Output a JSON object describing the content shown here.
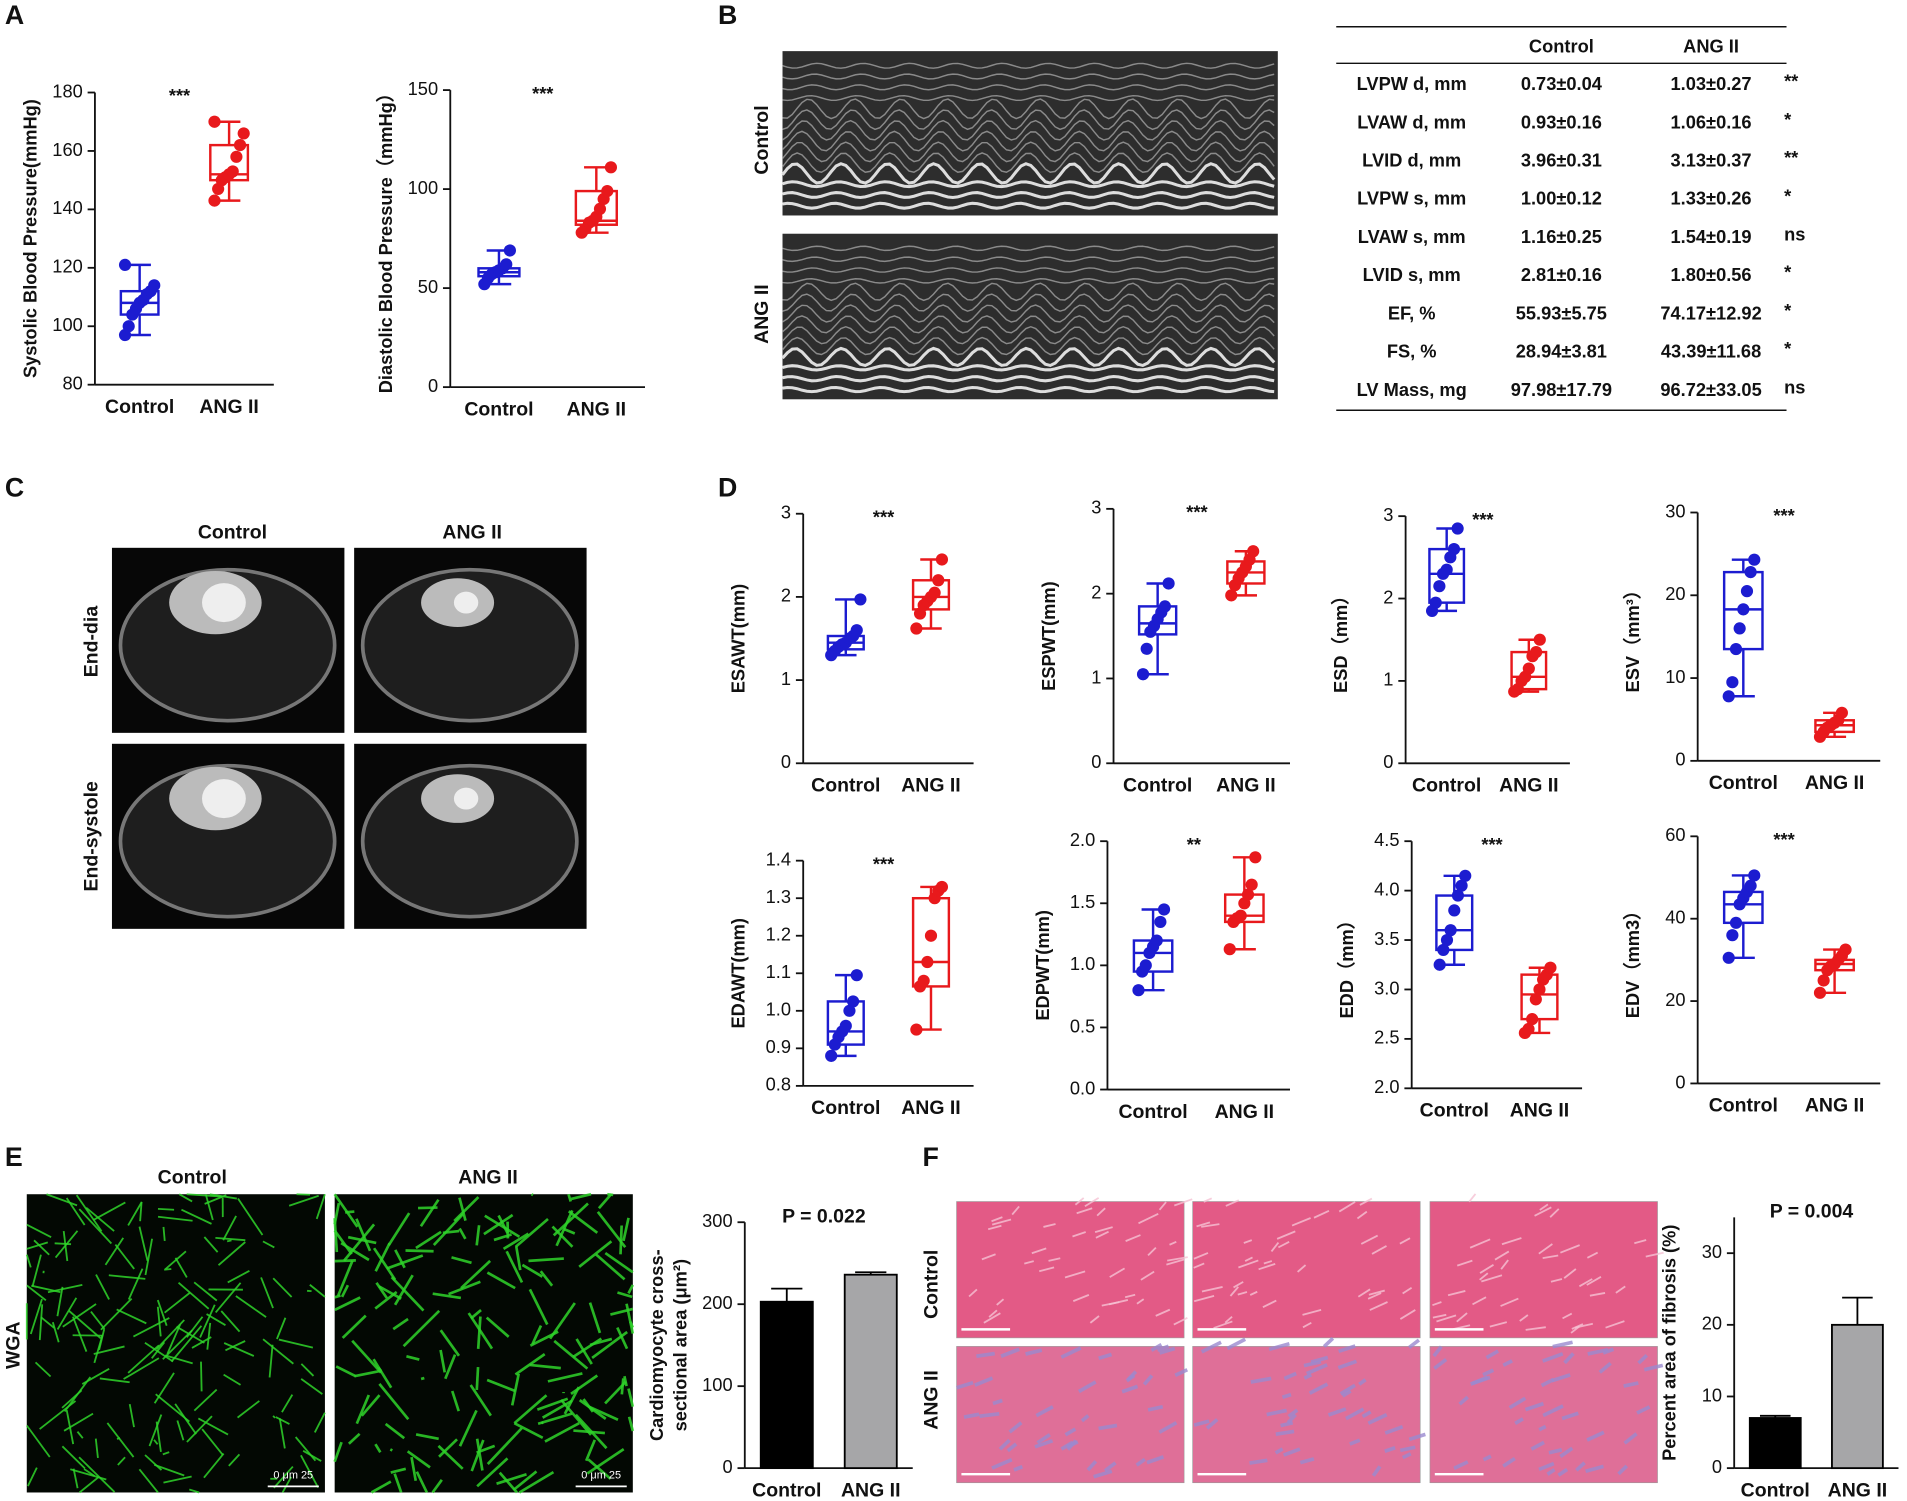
{
  "panel_labels": [
    "A",
    "B",
    "C",
    "D",
    "E",
    "F"
  ],
  "echo_labels": [
    "Control",
    "ANG II"
  ],
  "table": {
    "header": [
      "Control",
      "ANG II"
    ],
    "rows": [
      [
        "LVPW d, mm",
        "0.73±0.04",
        "1.03±0.27",
        "**"
      ],
      [
        "LVAW d, mm",
        "0.93±0.16",
        "1.06±0.16",
        "*"
      ],
      [
        "LVID d, mm",
        "3.96±0.31",
        "3.13±0.37",
        "**"
      ],
      [
        "LVPW s, mm",
        "1.00±0.12",
        "1.33±0.26",
        "*"
      ],
      [
        "LVAW s, mm",
        "1.16±0.25",
        "1.54±0.19",
        "ns"
      ],
      [
        "LVID s, mm",
        "2.81±0.16",
        "1.80±0.56",
        "*"
      ],
      [
        "EF, %",
        "55.93±5.75",
        "74.17±12.92",
        "*"
      ],
      [
        "FS, %",
        "28.94±3.81",
        "43.39±11.68",
        "*"
      ],
      [
        "LV Mass, mg",
        "97.98±17.79",
        "96.72±33.05",
        "ns"
      ]
    ]
  },
  "mri": {
    "columns": [
      "Control",
      "ANG II"
    ],
    "rows": [
      "End-dia",
      "End-systole"
    ]
  },
  "wga": {
    "columns": [
      "Control",
      "ANG II"
    ],
    "row": "WGA",
    "scale": "0   μm   25"
  },
  "fibrosis_images": {
    "rows": [
      "Control",
      "ANG II"
    ]
  },
  "chart_data": [
    {
      "type": "box",
      "ylabel": "Systolic Blood Pressure(mmHg)",
      "annotation": "***",
      "categories": [
        "Control",
        "ANG II"
      ],
      "ylim": [
        80,
        180
      ],
      "yticks": [
        80,
        100,
        120,
        140,
        160,
        180
      ],
      "groups": [
        {
          "color": "#1c1cd0",
          "min": 97,
          "q1": 104,
          "median": 108,
          "q3": 112,
          "max": 121,
          "points": [
            97,
            100,
            104,
            106,
            108,
            109,
            111,
            112,
            114,
            121
          ]
        },
        {
          "color": "#e8191c",
          "min": 143,
          "q1": 150,
          "median": 152,
          "q3": 162,
          "max": 170,
          "points": [
            143,
            147,
            150,
            151,
            152,
            153,
            158,
            162,
            166,
            170
          ]
        }
      ]
    },
    {
      "type": "box",
      "ylabel": "Diastolic Blood Pressure（mmHg）",
      "annotation": "***",
      "categories": [
        "Control",
        "ANG II"
      ],
      "ylim": [
        0,
        150
      ],
      "yticks": [
        0,
        50,
        100,
        150
      ],
      "groups": [
        {
          "color": "#1c1cd0",
          "min": 52,
          "q1": 56,
          "median": 58,
          "q3": 60,
          "max": 69,
          "points": [
            52,
            55,
            57,
            58,
            59,
            60,
            62,
            69
          ]
        },
        {
          "color": "#e8191c",
          "min": 78,
          "q1": 82,
          "median": 84,
          "q3": 99,
          "max": 111,
          "points": [
            78,
            80,
            83,
            84,
            86,
            90,
            95,
            99,
            111
          ]
        }
      ]
    },
    {
      "type": "box",
      "ylabel": "ESAWT(mm)",
      "annotation": "***",
      "categories": [
        "Control",
        "ANG II"
      ],
      "ylim": [
        0,
        3
      ],
      "yticks": [
        0,
        1,
        2,
        3
      ],
      "groups": [
        {
          "color": "#1c1cd0",
          "min": 1.3,
          "q1": 1.37,
          "median": 1.45,
          "q3": 1.53,
          "max": 1.97,
          "points": [
            1.3,
            1.35,
            1.4,
            1.43,
            1.45,
            1.5,
            1.53,
            1.6,
            1.97
          ]
        },
        {
          "color": "#e8191c",
          "min": 1.62,
          "q1": 1.85,
          "median": 2.0,
          "q3": 2.2,
          "max": 2.45,
          "points": [
            1.62,
            1.8,
            1.9,
            1.95,
            2.0,
            2.05,
            2.2,
            2.45
          ]
        }
      ]
    },
    {
      "type": "box",
      "ylabel": "ESPWT(mm)",
      "annotation": "***",
      "categories": [
        "Control",
        "ANG II"
      ],
      "ylim": [
        0,
        3
      ],
      "yticks": [
        0,
        1,
        2,
        3
      ],
      "groups": [
        {
          "color": "#1c1cd0",
          "min": 1.05,
          "q1": 1.52,
          "median": 1.65,
          "q3": 1.85,
          "max": 2.12,
          "points": [
            1.05,
            1.35,
            1.55,
            1.62,
            1.7,
            1.78,
            1.85,
            2.12
          ]
        },
        {
          "color": "#e8191c",
          "min": 1.98,
          "q1": 2.12,
          "median": 2.25,
          "q3": 2.38,
          "max": 2.5,
          "points": [
            1.98,
            2.1,
            2.18,
            2.25,
            2.32,
            2.4,
            2.5
          ]
        }
      ]
    },
    {
      "type": "box",
      "ylabel": "ESD（mm）",
      "annotation": "***",
      "categories": [
        "Control",
        "ANG II"
      ],
      "ylim": [
        0,
        3
      ],
      "yticks": [
        0,
        1,
        2,
        3
      ],
      "groups": [
        {
          "color": "#1c1cd0",
          "min": 1.85,
          "q1": 1.95,
          "median": 2.3,
          "q3": 2.6,
          "max": 2.85,
          "points": [
            1.85,
            1.95,
            2.15,
            2.3,
            2.35,
            2.5,
            2.6,
            2.85
          ]
        },
        {
          "color": "#e8191c",
          "min": 0.87,
          "q1": 0.9,
          "median": 1.05,
          "q3": 1.35,
          "max": 1.5,
          "points": [
            0.87,
            0.9,
            1.0,
            1.05,
            1.15,
            1.3,
            1.35,
            1.5
          ]
        }
      ]
    },
    {
      "type": "box",
      "ylabel": "ESV（mm³）",
      "annotation": "***",
      "categories": [
        "Control",
        "ANG II"
      ],
      "ylim": [
        0,
        30
      ],
      "yticks": [
        0,
        10,
        20,
        30
      ],
      "groups": [
        {
          "color": "#1c1cd0",
          "min": 7.8,
          "q1": 13.5,
          "median": 18.3,
          "q3": 22.8,
          "max": 24.3,
          "points": [
            7.8,
            9.5,
            13.5,
            16,
            18.3,
            20.5,
            22.8,
            24.3
          ]
        },
        {
          "color": "#e8191c",
          "min": 2.9,
          "q1": 3.5,
          "median": 4.3,
          "q3": 4.9,
          "max": 5.8,
          "points": [
            2.9,
            3.5,
            4.0,
            4.3,
            4.6,
            4.9,
            5.8
          ]
        }
      ]
    },
    {
      "type": "box",
      "ylabel": "EDAWT(mm)",
      "annotation": "***",
      "categories": [
        "Control",
        "ANG II"
      ],
      "ylim": [
        0.8,
        1.4
      ],
      "yticks": [
        0.8,
        0.9,
        {
          "value": 1,
          "label": "1.0"
        },
        1.1,
        1.2,
        1.3,
        1.4
      ],
      "groups": [
        {
          "color": "#1c1cd0",
          "min": 0.88,
          "q1": 0.91,
          "median": 0.945,
          "q3": 1.025,
          "max": 1.095,
          "points": [
            0.88,
            0.91,
            0.93,
            0.945,
            0.96,
            1.0,
            1.025,
            1.095
          ]
        },
        {
          "color": "#e8191c",
          "min": 0.95,
          "q1": 1.065,
          "median": 1.13,
          "q3": 1.3,
          "max": 1.33,
          "points": [
            0.95,
            1.065,
            1.08,
            1.13,
            1.2,
            1.3,
            1.32,
            1.33
          ]
        }
      ]
    },
    {
      "type": "box",
      "ylabel": "EDPWT(mm)",
      "annotation": "**",
      "categories": [
        "Control",
        "ANG II"
      ],
      "ylim": [
        0,
        2
      ],
      "yticks": [
        {
          "value": 0,
          "label": "0.0"
        },
        0.5,
        {
          "value": 1,
          "label": "1.0"
        },
        1.5,
        {
          "value": 2,
          "label": "2.0"
        }
      ],
      "groups": [
        {
          "color": "#1c1cd0",
          "min": 0.8,
          "q1": 0.95,
          "median": 1.1,
          "q3": 1.2,
          "max": 1.45,
          "points": [
            0.8,
            0.95,
            1.0,
            1.1,
            1.15,
            1.2,
            1.35,
            1.45
          ]
        },
        {
          "color": "#e8191c",
          "min": 1.13,
          "q1": 1.35,
          "median": 1.4,
          "q3": 1.57,
          "max": 1.87,
          "points": [
            1.13,
            1.35,
            1.38,
            1.4,
            1.5,
            1.57,
            1.65,
            1.87
          ]
        }
      ]
    },
    {
      "type": "box",
      "ylabel": "EDD（mm）",
      "annotation": "***",
      "categories": [
        "Control",
        "ANG II"
      ],
      "ylim": [
        2,
        4.5
      ],
      "yticks": [
        {
          "value": 2,
          "label": "2.0"
        },
        2.5,
        {
          "value": 3,
          "label": "3.0"
        },
        3.5,
        {
          "value": 4,
          "label": "4.0"
        },
        4.5
      ],
      "groups": [
        {
          "color": "#1c1cd0",
          "min": 3.25,
          "q1": 3.4,
          "median": 3.6,
          "q3": 3.95,
          "max": 4.15,
          "points": [
            3.25,
            3.4,
            3.5,
            3.6,
            3.8,
            3.95,
            4.05,
            4.15
          ]
        },
        {
          "color": "#e8191c",
          "min": 2.56,
          "q1": 2.7,
          "median": 2.95,
          "q3": 3.15,
          "max": 3.22,
          "points": [
            2.56,
            2.6,
            2.7,
            2.9,
            3.0,
            3.1,
            3.15,
            3.22
          ]
        }
      ]
    },
    {
      "type": "box",
      "ylabel": "EDV（mm3）",
      "annotation": "***",
      "categories": [
        "Control",
        "ANG II"
      ],
      "ylim": [
        0,
        60
      ],
      "yticks": [
        0,
        20,
        40,
        60
      ],
      "groups": [
        {
          "color": "#1c1cd0",
          "min": 30.5,
          "q1": 39,
          "median": 43.5,
          "q3": 46.5,
          "max": 50.5,
          "points": [
            30.5,
            36,
            39,
            43.5,
            45,
            46.5,
            48,
            50.5
          ]
        },
        {
          "color": "#e8191c",
          "min": 22,
          "q1": 27.5,
          "median": 29,
          "q3": 30,
          "max": 32.5,
          "points": [
            22,
            25,
            27.5,
            28.5,
            29,
            30,
            31,
            32.5
          ]
        }
      ]
    },
    {
      "type": "bar",
      "ylabel": [
        "Cardiomyocyte cross-",
        "sectional area (μm²)"
      ],
      "annotation": "P = 0.022",
      "categories": [
        "Control",
        "ANG II"
      ],
      "values": [
        203,
        236
      ],
      "errors": [
        16,
        3
      ],
      "colors": [
        "#000000",
        "#a6a6a8"
      ],
      "ylim": [
        0,
        300
      ],
      "yticks": [
        0,
        100,
        200,
        300
      ]
    },
    {
      "type": "bar",
      "ylabel": [
        "Percent area of fibrosis (%)"
      ],
      "annotation": "P = 0.004",
      "categories": [
        "Control",
        "ANG II"
      ],
      "values": [
        7,
        20
      ],
      "errors": [
        0.3,
        3.8
      ],
      "colors": [
        "#000000",
        "#a6a6a8"
      ],
      "ylim": [
        0,
        35
      ],
      "yticks": [
        0,
        10,
        20,
        30
      ]
    }
  ]
}
